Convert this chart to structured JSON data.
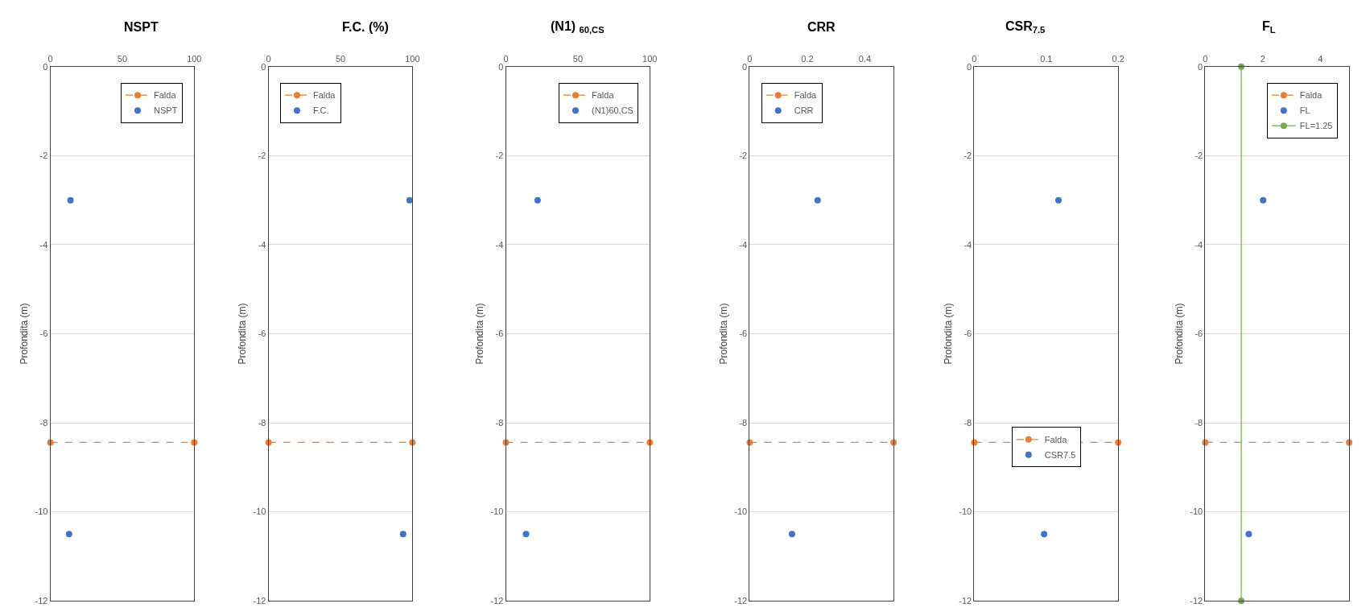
{
  "chart_data": [
    {
      "type": "scatter",
      "title": "NSPT",
      "ylabel": "Profondita (m)",
      "xlim": [
        0,
        100
      ],
      "xticks": [
        0,
        50,
        100
      ],
      "ylim": [
        -12,
        0
      ],
      "yticks": [
        -12,
        -10,
        -8,
        -6,
        -4,
        -2,
        0
      ],
      "grid": "y",
      "legend": "top right",
      "marker": "circle",
      "series": [
        {
          "name": "Falda",
          "type": "line",
          "line_style": "dashed",
          "color": "#ed7d31",
          "x": [
            0,
            100
          ],
          "values": [
            -8.44,
            -8.44
          ]
        },
        {
          "name": "NSPT",
          "color": "#4472c4",
          "x": [
            14,
            13
          ],
          "values": [
            -3,
            -10.5
          ]
        }
      ]
    },
    {
      "type": "scatter",
      "title": "F.C. (%)",
      "ylabel": "Profondita (m)",
      "xlim": [
        0,
        100
      ],
      "xticks": [
        0,
        50,
        100
      ],
      "ylim": [
        -12,
        0
      ],
      "yticks": [
        -12,
        -10,
        -8,
        -6,
        -4,
        -2,
        0
      ],
      "grid": "y",
      "legend": "top left",
      "marker": "circle",
      "series": [
        {
          "name": "Falda",
          "type": "line",
          "line_style": "dashed",
          "color": "#ed7d31",
          "x": [
            0,
            100
          ],
          "values": [
            -8.44,
            -8.44
          ]
        },
        {
          "name": "F.C.",
          "color": "#4472c4",
          "x": [
            98,
            93.5
          ],
          "values": [
            -3,
            -10.5
          ]
        }
      ]
    },
    {
      "type": "scatter",
      "title": "(N1) $_{60,CS}$",
      "ylabel": "Profondita (m)",
      "xlim": [
        0,
        100
      ],
      "xticks": [
        0,
        50,
        100
      ],
      "ylim": [
        -12,
        0
      ],
      "yticks": [
        -12,
        -10,
        -8,
        -6,
        -4,
        -2,
        0
      ],
      "grid": "y",
      "legend": "top right",
      "marker": "circle",
      "series": [
        {
          "name": "Falda",
          "type": "line",
          "line_style": "dashed",
          "color": "#ed7d31",
          "x": [
            0,
            100
          ],
          "values": [
            -8.44,
            -8.44
          ]
        },
        {
          "name": "(N1)60,CS",
          "color": "#4472c4",
          "x": [
            22,
            14
          ],
          "values": [
            -3,
            -10.5
          ]
        }
      ]
    },
    {
      "type": "scatter",
      "title": "CRR",
      "ylabel": "Profondita (m)",
      "xlim": [
        0,
        0.5
      ],
      "xticks": [
        0,
        0.2,
        0.4
      ],
      "ylim": [
        -12,
        0
      ],
      "yticks": [
        -12,
        -10,
        -8,
        -6,
        -4,
        -2,
        0
      ],
      "grid": "y",
      "legend": "top left",
      "marker": "circle",
      "series": [
        {
          "name": "Falda",
          "type": "line",
          "line_style": "dashed",
          "color": "#ed7d31",
          "x": [
            0,
            0.5
          ],
          "values": [
            -8.44,
            -8.44
          ]
        },
        {
          "name": "CRR",
          "color": "#4472c4",
          "x": [
            0.236,
            0.147
          ],
          "values": [
            -3,
            -10.5
          ]
        }
      ]
    },
    {
      "type": "scatter",
      "title": "CSR$_{7.5}$",
      "ylabel": "Profondita (m)",
      "xlim": [
        0,
        0.2
      ],
      "xticks": [
        0,
        0.1,
        0.2
      ],
      "ylim": [
        -12,
        0
      ],
      "yticks": [
        -12,
        -10,
        -8,
        -6,
        -4,
        -2,
        0
      ],
      "grid": "y",
      "legend": "bottom",
      "marker": "circle",
      "series": [
        {
          "name": "Falda",
          "type": "line",
          "line_style": "dashed",
          "color": "#ed7d31",
          "x": [
            0,
            0.2
          ],
          "values": [
            -8.44,
            -8.44
          ]
        },
        {
          "name": "CSR7.5",
          "color": "#4472c4",
          "x": [
            0.117,
            0.097
          ],
          "values": [
            -3,
            -10.5
          ]
        }
      ]
    },
    {
      "type": "scatter",
      "title": "F$_{L}$",
      "ylabel": "Profondita (m)",
      "xlim": [
        0,
        5
      ],
      "xticks": [
        0,
        2,
        4
      ],
      "ylim": [
        -12,
        0
      ],
      "yticks": [
        -12,
        -10,
        -8,
        -6,
        -4,
        -2,
        0
      ],
      "grid": "y",
      "legend": "top right",
      "marker": "circle",
      "series": [
        {
          "name": "Falda",
          "type": "line",
          "line_style": "dashed",
          "color": "#ed7d31",
          "x": [
            0,
            5
          ],
          "values": [
            -8.44,
            -8.44
          ]
        },
        {
          "name": "FL",
          "color": "#4472c4",
          "x": [
            2.01,
            1.51
          ],
          "values": [
            -3,
            -10.5
          ]
        },
        {
          "name": "FL=1.25",
          "type": "line",
          "line_style": "solid",
          "color": "#70ad47",
          "x": [
            1.25,
            1.25
          ],
          "values": [
            0,
            -12
          ]
        }
      ]
    }
  ]
}
